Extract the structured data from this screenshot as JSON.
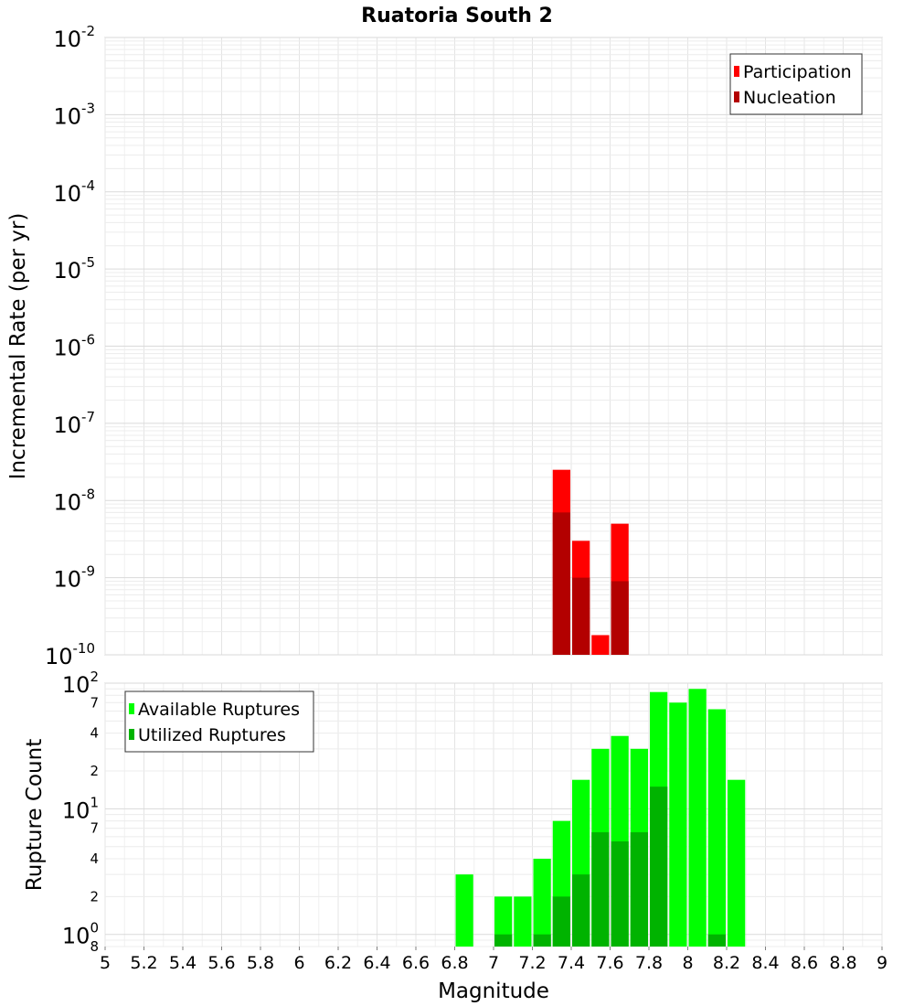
{
  "chart_data": [
    {
      "type": "bar",
      "title": "Ruatoria South 2",
      "xlabel": "",
      "ylabel": "Incremental Rate (per yr)",
      "yscale": "log",
      "ylim": [
        1e-10,
        0.01
      ],
      "xlim": [
        5,
        9
      ],
      "y_tick_bases": [
        "10",
        "10",
        "10",
        "10",
        "10",
        "10",
        "10",
        "10",
        "10"
      ],
      "y_tick_exponents": [
        "-10",
        "-9",
        "-8",
        "-7",
        "-6",
        "-5",
        "-4",
        "-3",
        "-2"
      ],
      "legend_position": "top-right",
      "series": [
        {
          "name": "Participation",
          "color": "#ff0000",
          "x": [
            7.35,
            7.45,
            7.55,
            7.65
          ],
          "values": [
            2.5e-08,
            3e-09,
            1.8e-10,
            5e-09
          ]
        },
        {
          "name": "Nucleation",
          "color": "#b30000",
          "x": [
            7.35,
            7.45,
            7.55,
            7.65
          ],
          "values": [
            7e-09,
            1e-09,
            1e-10,
            9e-10
          ]
        }
      ]
    },
    {
      "type": "bar",
      "title": "",
      "xlabel": "Magnitude",
      "ylabel": "Rupture Count",
      "yscale": "log",
      "ylim": [
        0.8,
        100
      ],
      "xlim": [
        5,
        9
      ],
      "x_ticks": [
        "5",
        "5.2",
        "5.4",
        "5.6",
        "5.8",
        "6",
        "6.2",
        "6.4",
        "6.6",
        "6.8",
        "7",
        "7.2",
        "7.4",
        "7.6",
        "7.8",
        "8",
        "8.2",
        "8.4",
        "8.6",
        "8.8",
        "9"
      ],
      "y_tick_bases": [
        "10",
        "10",
        "10"
      ],
      "y_tick_exponents": [
        "0",
        "1",
        "2"
      ],
      "y_minor_labels": [
        "8",
        "2",
        "4",
        "7",
        "2",
        "4",
        "7"
      ],
      "legend_position": "top-left",
      "series": [
        {
          "name": "Available Ruptures",
          "color": "#00ff00",
          "x": [
            6.85,
            7.05,
            7.15,
            7.25,
            7.35,
            7.45,
            7.55,
            7.65,
            7.75,
            7.85,
            7.95,
            8.05,
            8.15,
            8.25
          ],
          "values": [
            3,
            2,
            2,
            4,
            8,
            17,
            30,
            38,
            30,
            85,
            70,
            90,
            62,
            17
          ]
        },
        {
          "name": "Utilized Ruptures",
          "color": "#00b300",
          "x": [
            7.05,
            7.25,
            7.35,
            7.45,
            7.55,
            7.65,
            7.75,
            7.85,
            8.15
          ],
          "values": [
            1,
            1,
            2,
            3,
            6.5,
            5.5,
            6.5,
            15,
            1
          ]
        }
      ]
    }
  ]
}
